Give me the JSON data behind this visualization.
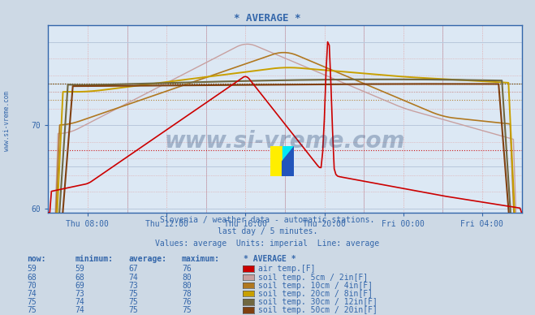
{
  "title": "* AVERAGE *",
  "background_color": "#cdd9e5",
  "plot_bg_color": "#dce8f4",
  "title_color": "#3366aa",
  "text_color": "#3366aa",
  "axis_color": "#3366aa",
  "xtick_labels": [
    "Thu 08:00",
    "Thu 12:00",
    "Thu 16:00",
    "Thu 20:00",
    "Fri 00:00",
    "Fri 04:00"
  ],
  "xtick_positions": [
    2,
    6,
    10,
    14,
    18,
    22
  ],
  "xlim": [
    0,
    24
  ],
  "ylim": [
    59.5,
    82
  ],
  "ytick_positions": [
    60,
    70
  ],
  "ytick_labels": [
    "60",
    "70"
  ],
  "subtitle1": "Slovenia / weather data - automatic stations.",
  "subtitle2": "last day / 5 minutes.",
  "subtitle3": "Values: average  Units: imperial  Line: average",
  "watermark": "www.si-vreme.com",
  "legend_items": [
    {
      "label": "air temp.[F]",
      "color": "#cc0000",
      "now": 59,
      "min": 59,
      "avg": 67,
      "max": 76
    },
    {
      "label": "soil temp. 5cm / 2in[F]",
      "color": "#c8a0a0",
      "now": 68,
      "min": 68,
      "avg": 74,
      "max": 80
    },
    {
      "label": "soil temp. 10cm / 4in[F]",
      "color": "#b07820",
      "now": 70,
      "min": 69,
      "avg": 73,
      "max": 80
    },
    {
      "label": "soil temp. 20cm / 8in[F]",
      "color": "#c8a000",
      "now": 74,
      "min": 73,
      "avg": 75,
      "max": 78
    },
    {
      "label": "soil temp. 30cm / 12in[F]",
      "color": "#706840",
      "now": 75,
      "min": 74,
      "avg": 75,
      "max": 76
    },
    {
      "label": "soil temp. 50cm / 20in[F]",
      "color": "#804010",
      "now": 75,
      "min": 74,
      "avg": 75,
      "max": 75
    }
  ],
  "avg_dotted_colors": [
    "#cc0000",
    "#c8a0a0",
    "#b07820",
    "#c8a000",
    "#706840",
    "#804010"
  ],
  "avg_dotted_values": [
    67,
    74,
    73,
    75,
    75,
    75
  ]
}
